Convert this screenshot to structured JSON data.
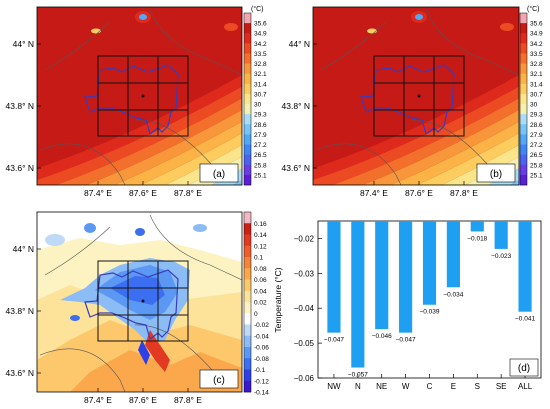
{
  "panels": {
    "a": {
      "letter": "(a)",
      "colorbar_unit": "(°C)",
      "colorbar_ticks": [
        "35.6",
        "34.9",
        "34.2",
        "33.5",
        "32.8",
        "32.1",
        "31.4",
        "30.7",
        "30",
        "29.3",
        "28.6",
        "27.9",
        "27.2",
        "26.5",
        "25.8",
        "25.1"
      ],
      "y_ticks": [
        "44° N",
        "43.8° N",
        "43.6° N"
      ],
      "x_ticks": [
        "87.4° E",
        "87.6° E",
        "87.8° E"
      ]
    },
    "b": {
      "letter": "(b)",
      "colorbar_unit": "(°C)",
      "colorbar_ticks": [
        "35.6",
        "34.9",
        "34.2",
        "33.5",
        "32.8",
        "32.1",
        "31.4",
        "30.7",
        "30",
        "29.3",
        "28.6",
        "27.9",
        "27.2",
        "26.5",
        "25.8",
        "25.1"
      ],
      "y_ticks": [
        "44° N",
        "43.8° N",
        "43.6° N"
      ],
      "x_ticks": [
        "87.4° E",
        "87.6° E",
        "87.8° E"
      ]
    },
    "c": {
      "letter": "(c)",
      "colorbar_ticks": [
        "0.16",
        "0.14",
        "0.12",
        "0.1",
        "0.08",
        "0.06",
        "0.04",
        "0.02",
        "0",
        "-0.02",
        "-0.04",
        "-0.06",
        "-0.08",
        "-0.1",
        "-0.12",
        "-0.14"
      ],
      "y_ticks": [
        "44° N",
        "43.8° N",
        "43.6° N"
      ],
      "x_ticks": [
        "87.4° E",
        "87.6° E",
        "87.8° E"
      ]
    }
  },
  "temperature_colors": [
    "#5a1fd6",
    "#6a3ee6",
    "#4e62f0",
    "#3f86f2",
    "#52a8f5",
    "#77c4f7",
    "#a8dcf7",
    "#f4f0b0",
    "#fbe58a",
    "#fccc5f",
    "#fbb246",
    "#f7963a",
    "#f26f2c",
    "#eb4a23",
    "#dd2a1c",
    "#c61a16",
    "#f2a6b2"
  ],
  "difference_colors": [
    "#3a18cf",
    "#2d3fe6",
    "#3c6ef2",
    "#5a98f4",
    "#8cbcf6",
    "#bedaf6",
    "#ffffff",
    "#fdf3c2",
    "#fde29a",
    "#fcc86b",
    "#fba84c",
    "#f5843b",
    "#ee5e2d",
    "#e23a22",
    "#cc1f18",
    "#f4b8c4"
  ],
  "chart_data": {
    "type": "bar",
    "letter": "(d)",
    "ylabel": "Temperature (°C)",
    "categories": [
      "NW",
      "N",
      "NE",
      "W",
      "C",
      "E",
      "S",
      "SE",
      "ALL"
    ],
    "values": [
      -0.047,
      -0.057,
      -0.046,
      -0.047,
      -0.039,
      -0.034,
      -0.018,
      -0.023,
      -0.041
    ],
    "value_labels": [
      "−0.047",
      "−0.057",
      "−0.046",
      "−0.047",
      "−0.039",
      "−0.034",
      "−0.018",
      "−0.023",
      "−0.041"
    ],
    "ylim": [
      -0.06,
      -0.015
    ],
    "y_ticks": [
      -0.02,
      -0.03,
      -0.04,
      -0.05,
      -0.06
    ],
    "y_tick_labels": [
      "−0.02",
      "−0.03",
      "−0.04",
      "−0.05",
      "−0.06"
    ],
    "bar_color": "#1e9ff2",
    "grid": false
  }
}
